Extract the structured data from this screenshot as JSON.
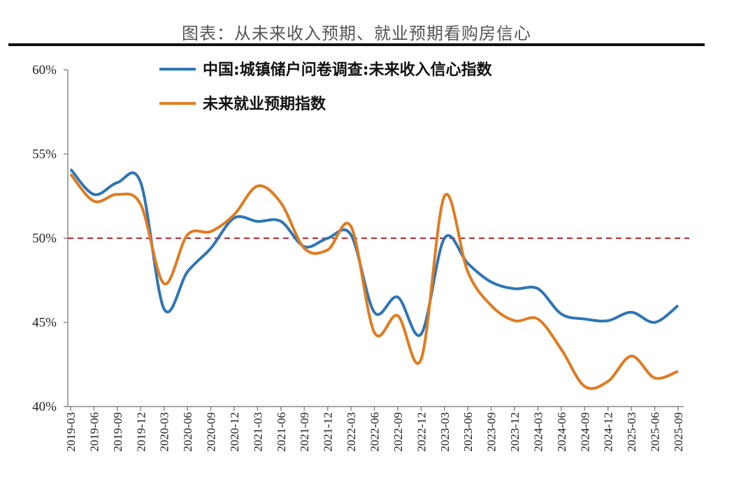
{
  "title": "图表：从未来收入预期、就业预期看购房信心",
  "chart_data": {
    "type": "line",
    "title": "图表：从未来收入预期、就业预期看购房信心",
    "xlabel": "",
    "ylabel": "",
    "ylim": [
      40,
      60
    ],
    "yticks": [
      "40%",
      "45%",
      "50%",
      "55%",
      "60%"
    ],
    "grid": false,
    "legend": "top",
    "reference_line": {
      "value": 50,
      "style": "dashed",
      "color": "#c0272d"
    },
    "categories": [
      "2019-03",
      "2019-06",
      "2019-09",
      "2019-12",
      "2020-03",
      "2020-06",
      "2020-09",
      "2020-12",
      "2021-03",
      "2021-06",
      "2021-09",
      "2021-12",
      "2022-03",
      "2022-06",
      "2022-09",
      "2022-12",
      "2023-03",
      "2023-06",
      "2023-09",
      "2023-12",
      "2024-03",
      "2024-06",
      "2024-09",
      "2024-12",
      "2025-03",
      "2025-06",
      "2025-09"
    ],
    "series": [
      {
        "name": "中国:城镇储户问卷调查:未来收入信心指数",
        "color": "#2e75b6",
        "values": [
          54.1,
          52.6,
          53.3,
          53.3,
          45.8,
          48.0,
          49.4,
          51.2,
          51.0,
          51.0,
          49.5,
          50.0,
          50.2,
          45.6,
          46.5,
          44.3,
          50.0,
          48.5,
          47.4,
          47.0,
          47.0,
          45.5,
          45.2,
          45.1,
          45.6,
          45.0,
          46.0
        ]
      },
      {
        "name": "未来就业预期指数",
        "color": "#e07b1f",
        "values": [
          53.8,
          52.2,
          52.6,
          52.0,
          47.3,
          50.2,
          50.4,
          51.4,
          53.1,
          52.1,
          49.4,
          49.3,
          50.7,
          44.4,
          45.4,
          42.8,
          52.5,
          48.0,
          46.0,
          45.1,
          45.2,
          43.4,
          41.2,
          41.5,
          43.0,
          41.7,
          42.1
        ]
      }
    ]
  }
}
